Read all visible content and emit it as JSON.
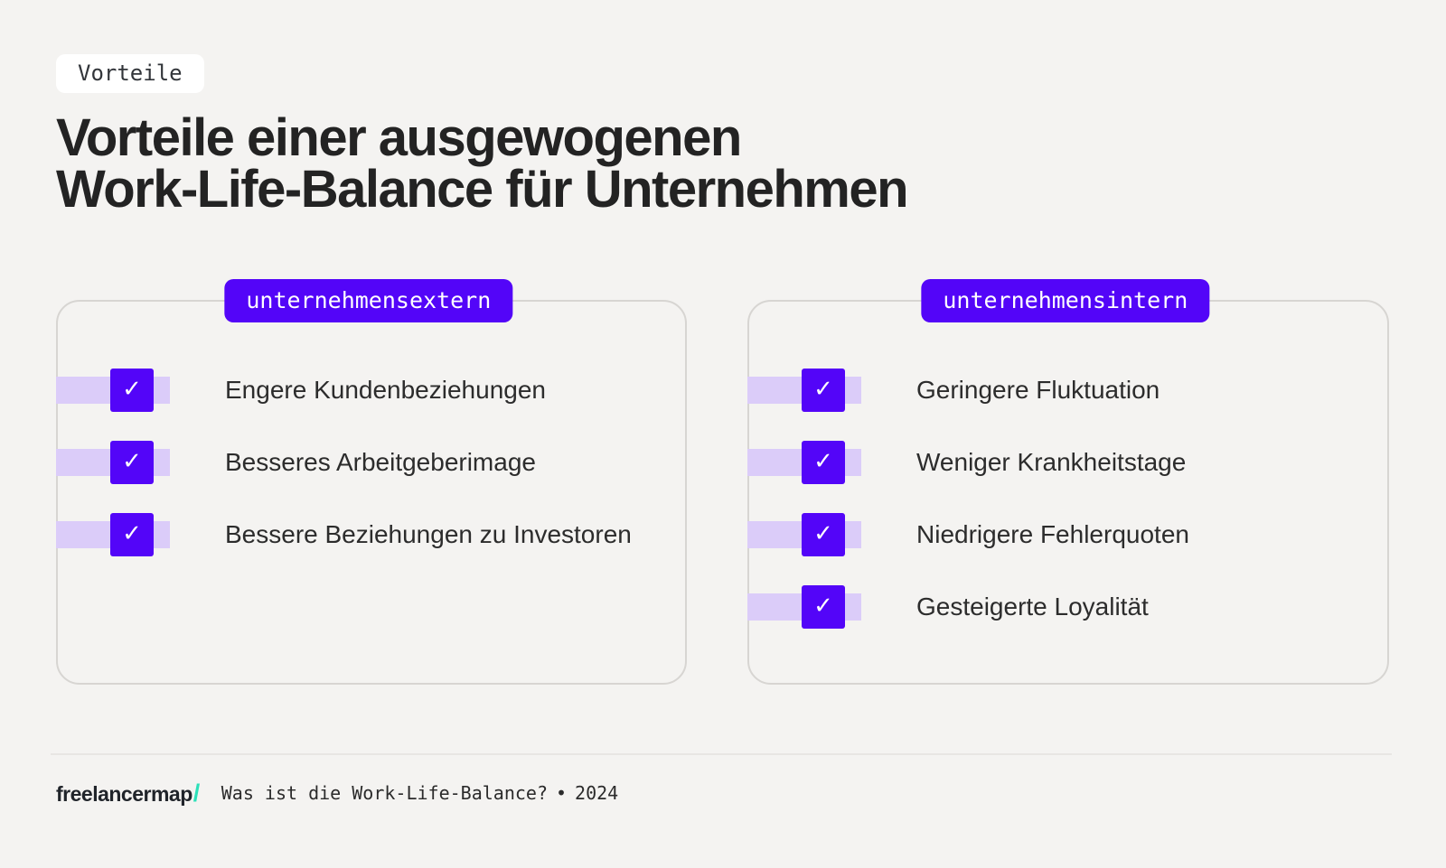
{
  "colors": {
    "background": "#f4f3f1",
    "accent": "#5305f8",
    "accent_light": "#dbccf9",
    "mint_slash": "#2ce0b9",
    "title": "#232323",
    "card_border": "#d7d5d2"
  },
  "header": {
    "tag_label": "Vorteile",
    "title_line1": "Vorteile einer ausgewogenen",
    "title_line2": "Work-Life-Balance für Unternehmen"
  },
  "cards": [
    {
      "badge": "unternehmensextern",
      "items": [
        "Engere Kundenbeziehungen",
        "Besseres Arbeitgeberimage",
        "Bessere Beziehungen zu Investoren"
      ]
    },
    {
      "badge": "unternehmensintern",
      "items": [
        "Geringere Fluktuation",
        "Weniger Krankheitstage",
        "Niedrigere Fehlerquoten",
        "Gesteigerte Loyalität"
      ]
    }
  ],
  "icons": {
    "check": "✓"
  },
  "footer": {
    "logo_text": "freelancermap",
    "logo_slash": "/",
    "caption": "Was ist die Work-Life-Balance?",
    "separator": "•",
    "year": "2024"
  }
}
